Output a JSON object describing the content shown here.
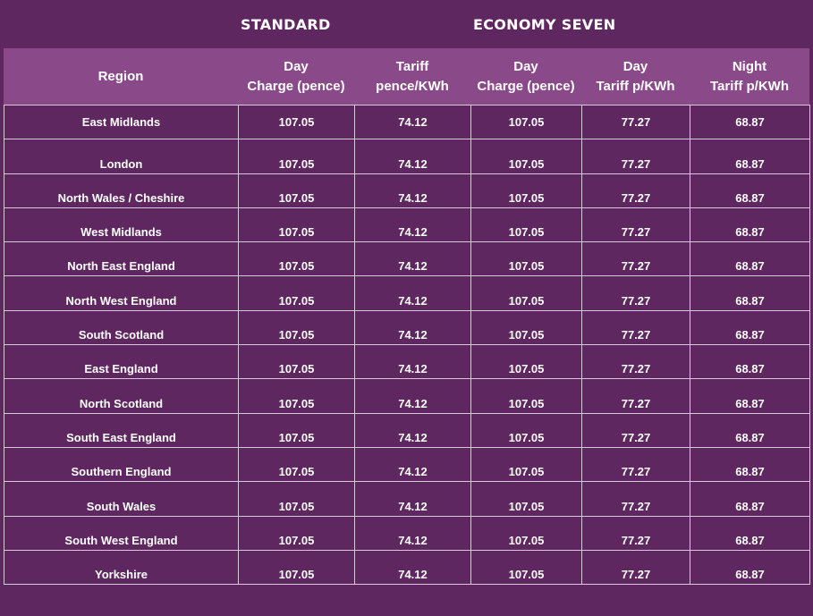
{
  "groups": {
    "standard": "STANDARD",
    "economy": "ECONOMY SEVEN"
  },
  "headers": [
    {
      "line1": "Region",
      "line2": ""
    },
    {
      "line1": "Day",
      "line2": "Charge (pence)"
    },
    {
      "line1": "Tariff",
      "line2": "pence/KWh"
    },
    {
      "line1": "Day",
      "line2": "Charge (pence)"
    },
    {
      "line1": "Day",
      "line2": "Tariff p/KWh"
    },
    {
      "line1": "Night",
      "line2": "Tariff p/KWh"
    }
  ],
  "rows": [
    {
      "region": "East Midlands",
      "std_day_charge": "107.05",
      "std_tariff": "74.12",
      "e7_day_charge": "107.05",
      "e7_day_tariff": "77.27",
      "e7_night_tariff": "68.87"
    },
    {
      "region": "London",
      "std_day_charge": "107.05",
      "std_tariff": "74.12",
      "e7_day_charge": "107.05",
      "e7_day_tariff": "77.27",
      "e7_night_tariff": "68.87"
    },
    {
      "region": "North Wales / Cheshire",
      "std_day_charge": "107.05",
      "std_tariff": "74.12",
      "e7_day_charge": "107.05",
      "e7_day_tariff": "77.27",
      "e7_night_tariff": "68.87"
    },
    {
      "region": "West Midlands",
      "std_day_charge": "107.05",
      "std_tariff": "74.12",
      "e7_day_charge": "107.05",
      "e7_day_tariff": "77.27",
      "e7_night_tariff": "68.87"
    },
    {
      "region": "North East England",
      "std_day_charge": "107.05",
      "std_tariff": "74.12",
      "e7_day_charge": "107.05",
      "e7_day_tariff": "77.27",
      "e7_night_tariff": "68.87"
    },
    {
      "region": "North West England",
      "std_day_charge": "107.05",
      "std_tariff": "74.12",
      "e7_day_charge": "107.05",
      "e7_day_tariff": "77.27",
      "e7_night_tariff": "68.87"
    },
    {
      "region": "South Scotland",
      "std_day_charge": "107.05",
      "std_tariff": "74.12",
      "e7_day_charge": "107.05",
      "e7_day_tariff": "77.27",
      "e7_night_tariff": "68.87"
    },
    {
      "region": "East England",
      "std_day_charge": "107.05",
      "std_tariff": "74.12",
      "e7_day_charge": "107.05",
      "e7_day_tariff": "77.27",
      "e7_night_tariff": "68.87"
    },
    {
      "region": "North Scotland",
      "std_day_charge": "107.05",
      "std_tariff": "74.12",
      "e7_day_charge": "107.05",
      "e7_day_tariff": "77.27",
      "e7_night_tariff": "68.87"
    },
    {
      "region": "South East England",
      "std_day_charge": "107.05",
      "std_tariff": "74.12",
      "e7_day_charge": "107.05",
      "e7_day_tariff": "77.27",
      "e7_night_tariff": "68.87"
    },
    {
      "region": "Southern England",
      "std_day_charge": "107.05",
      "std_tariff": "74.12",
      "e7_day_charge": "107.05",
      "e7_day_tariff": "77.27",
      "e7_night_tariff": "68.87"
    },
    {
      "region": "South Wales",
      "std_day_charge": "107.05",
      "std_tariff": "74.12",
      "e7_day_charge": "107.05",
      "e7_day_tariff": "77.27",
      "e7_night_tariff": "68.87"
    },
    {
      "region": "South West England",
      "std_day_charge": "107.05",
      "std_tariff": "74.12",
      "e7_day_charge": "107.05",
      "e7_day_tariff": "77.27",
      "e7_night_tariff": "68.87"
    },
    {
      "region": "Yorkshire",
      "std_day_charge": "107.05",
      "std_tariff": "74.12",
      "e7_day_charge": "107.05",
      "e7_day_tariff": "77.27",
      "e7_night_tariff": "68.87"
    }
  ],
  "colors": {
    "background": "#5f2760",
    "header_band": "#8a4a8a",
    "grid_line": "#d9c8da",
    "text": "#ffffff"
  }
}
